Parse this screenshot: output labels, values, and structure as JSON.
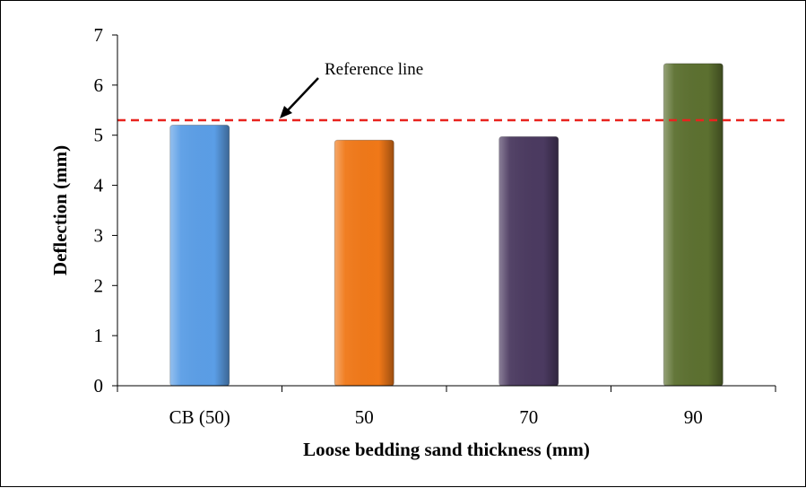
{
  "chart_data": {
    "type": "bar",
    "categories": [
      "CB (50)",
      "50",
      "70",
      "90"
    ],
    "values": [
      5.2,
      4.9,
      4.97,
      6.43
    ],
    "bar_colors": [
      "#5b9ee6",
      "#f07818",
      "#4b3a60",
      "#5c7030"
    ],
    "xlabel": "Loose bedding sand thickness (mm)",
    "ylabel": "Deflection (mm)",
    "ylim": [
      0,
      7
    ],
    "yticks": [
      "0",
      "1",
      "2",
      "3",
      "4",
      "5",
      "6",
      "7"
    ],
    "grid": false,
    "legend": "none",
    "reference_line": {
      "label": "Reference line",
      "value": 5.3,
      "color": "#e8231e",
      "style": "dashed"
    }
  }
}
